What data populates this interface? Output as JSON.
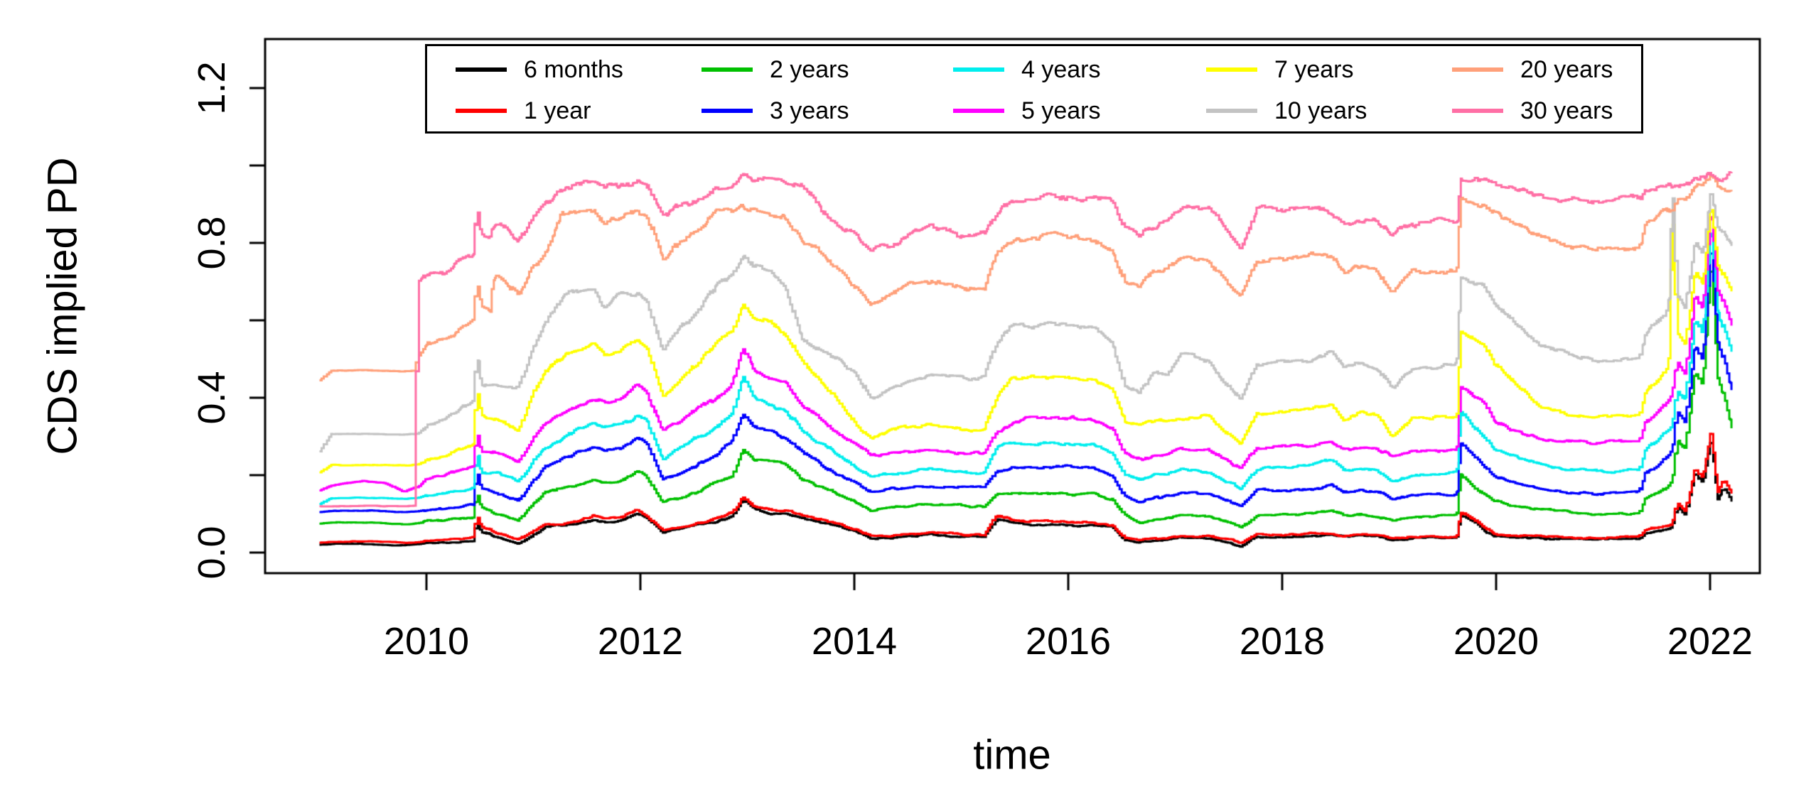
{
  "chart_data": {
    "type": "line",
    "title": "",
    "xlabel": "time",
    "ylabel": "CDS implied PD",
    "grid": false,
    "legend_position": "top-center",
    "xlim": [
      2008.49,
      2022.46
    ],
    "ylim": [
      0.0,
      1.2
    ],
    "x_axis": {
      "ticks": [
        2010,
        2012,
        2014,
        2016,
        2018,
        2020,
        2022
      ],
      "labels": [
        "2010",
        "2012",
        "2014",
        "2016",
        "2018",
        "2020",
        "2022"
      ]
    },
    "y_axis": {
      "ticks": [
        0.0,
        0.2,
        0.4,
        0.6,
        0.8,
        1.0,
        1.2
      ],
      "labeled": [
        {
          "value": 0.0,
          "label": "0.0"
        },
        {
          "value": 0.4,
          "label": "0.4"
        },
        {
          "value": 0.8,
          "label": "0.8"
        },
        {
          "value": 1.2,
          "label": "1.2"
        }
      ]
    },
    "t": [
      2009.0,
      2009.1,
      2009.4,
      2009.6,
      2009.78,
      2009.88,
      2009.91,
      2010.0,
      2010.15,
      2010.3,
      2010.43,
      2010.46,
      2010.5,
      2010.58,
      2010.61,
      2010.66,
      2010.85,
      2011.0,
      2011.1,
      2011.25,
      2011.4,
      2011.55,
      2011.65,
      2011.8,
      2011.96,
      2012.05,
      2012.2,
      2012.35,
      2012.5,
      2012.7,
      2012.85,
      2012.95,
      2013.05,
      2013.2,
      2013.35,
      2013.5,
      2013.65,
      2013.8,
      2014.0,
      2014.15,
      2014.35,
      2014.55,
      2014.7,
      2014.9,
      2015.05,
      2015.2,
      2015.32,
      2015.45,
      2015.6,
      2015.9,
      2016.2,
      2016.4,
      2016.52,
      2016.65,
      2016.78,
      2016.92,
      2017.05,
      2017.3,
      2017.45,
      2017.6,
      2017.75,
      2018.0,
      2018.25,
      2018.45,
      2018.57,
      2018.72,
      2018.88,
      2019.02,
      2019.2,
      2019.4,
      2019.62,
      2019.66,
      2019.78,
      2019.88,
      2019.97,
      2020.12,
      2020.28,
      2020.42,
      2020.6,
      2020.9,
      2021.15,
      2021.33,
      2021.38,
      2021.5,
      2021.6,
      2021.64,
      2021.68,
      2021.76,
      2021.85,
      2021.92,
      2022.0,
      2022.06,
      2022.12,
      2022.2
    ],
    "series": [
      {
        "name": "6 months",
        "color": "#000000",
        "v": [
          0.02,
          0.022,
          0.022,
          0.021,
          0.019,
          0.021,
          0.022,
          0.024,
          0.026,
          0.028,
          0.03,
          0.085,
          0.055,
          0.048,
          0.044,
          0.04,
          0.025,
          0.05,
          0.065,
          0.07,
          0.072,
          0.085,
          0.08,
          0.083,
          0.1,
          0.09,
          0.055,
          0.06,
          0.068,
          0.08,
          0.095,
          0.135,
          0.11,
          0.1,
          0.098,
          0.088,
          0.078,
          0.07,
          0.055,
          0.037,
          0.04,
          0.043,
          0.047,
          0.044,
          0.041,
          0.042,
          0.088,
          0.078,
          0.072,
          0.071,
          0.069,
          0.063,
          0.032,
          0.027,
          0.031,
          0.033,
          0.037,
          0.038,
          0.029,
          0.02,
          0.04,
          0.041,
          0.043,
          0.046,
          0.04,
          0.042,
          0.04,
          0.033,
          0.038,
          0.039,
          0.038,
          0.098,
          0.078,
          0.055,
          0.042,
          0.04,
          0.038,
          0.037,
          0.036,
          0.034,
          0.036,
          0.036,
          0.048,
          0.055,
          0.062,
          0.068,
          0.12,
          0.1,
          0.21,
          0.18,
          0.29,
          0.14,
          0.17,
          0.13
        ]
      },
      {
        "name": "1 year",
        "color": "#FF0000",
        "v": [
          0.025,
          0.027,
          0.028,
          0.027,
          0.025,
          0.027,
          0.028,
          0.03,
          0.033,
          0.036,
          0.038,
          0.095,
          0.065,
          0.056,
          0.05,
          0.046,
          0.03,
          0.058,
          0.075,
          0.077,
          0.08,
          0.094,
          0.088,
          0.092,
          0.112,
          0.098,
          0.061,
          0.068,
          0.075,
          0.09,
          0.106,
          0.147,
          0.12,
          0.11,
          0.108,
          0.096,
          0.085,
          0.075,
          0.06,
          0.042,
          0.044,
          0.047,
          0.052,
          0.049,
          0.046,
          0.047,
          0.098,
          0.086,
          0.08,
          0.079,
          0.077,
          0.071,
          0.036,
          0.03,
          0.035,
          0.037,
          0.042,
          0.042,
          0.033,
          0.024,
          0.045,
          0.046,
          0.048,
          0.051,
          0.045,
          0.047,
          0.044,
          0.037,
          0.042,
          0.043,
          0.042,
          0.106,
          0.086,
          0.062,
          0.046,
          0.044,
          0.042,
          0.041,
          0.04,
          0.038,
          0.04,
          0.04,
          0.055,
          0.065,
          0.072,
          0.078,
          0.13,
          0.11,
          0.22,
          0.19,
          0.31,
          0.155,
          0.19,
          0.155
        ]
      },
      {
        "name": "2 years",
        "color": "#00C000",
        "v": [
          0.075,
          0.078,
          0.078,
          0.076,
          0.073,
          0.076,
          0.077,
          0.08,
          0.083,
          0.086,
          0.09,
          0.155,
          0.115,
          0.108,
          0.104,
          0.1,
          0.085,
          0.13,
          0.155,
          0.168,
          0.175,
          0.186,
          0.18,
          0.183,
          0.21,
          0.195,
          0.128,
          0.14,
          0.155,
          0.185,
          0.2,
          0.268,
          0.24,
          0.238,
          0.228,
          0.19,
          0.172,
          0.155,
          0.13,
          0.108,
          0.115,
          0.121,
          0.125,
          0.122,
          0.119,
          0.12,
          0.15,
          0.152,
          0.152,
          0.151,
          0.149,
          0.14,
          0.096,
          0.075,
          0.085,
          0.09,
          0.094,
          0.092,
          0.08,
          0.064,
          0.095,
          0.097,
          0.1,
          0.108,
          0.095,
          0.1,
          0.095,
          0.083,
          0.09,
          0.093,
          0.094,
          0.202,
          0.168,
          0.149,
          0.135,
          0.125,
          0.115,
          0.11,
          0.103,
          0.097,
          0.1,
          0.1,
          0.135,
          0.15,
          0.17,
          0.185,
          0.29,
          0.27,
          0.47,
          0.43,
          0.73,
          0.45,
          0.4,
          0.32
        ]
      },
      {
        "name": "3 years",
        "color": "#0000FF",
        "v": [
          0.105,
          0.108,
          0.109,
          0.107,
          0.104,
          0.106,
          0.107,
          0.11,
          0.113,
          0.118,
          0.125,
          0.215,
          0.165,
          0.16,
          0.158,
          0.155,
          0.135,
          0.19,
          0.222,
          0.24,
          0.258,
          0.272,
          0.262,
          0.268,
          0.296,
          0.28,
          0.186,
          0.205,
          0.225,
          0.25,
          0.29,
          0.357,
          0.32,
          0.31,
          0.293,
          0.26,
          0.232,
          0.204,
          0.18,
          0.158,
          0.165,
          0.171,
          0.175,
          0.172,
          0.169,
          0.17,
          0.21,
          0.22,
          0.222,
          0.221,
          0.219,
          0.205,
          0.151,
          0.131,
          0.14,
          0.145,
          0.152,
          0.152,
          0.135,
          0.119,
          0.158,
          0.16,
          0.163,
          0.174,
          0.155,
          0.16,
          0.155,
          0.137,
          0.148,
          0.15,
          0.152,
          0.284,
          0.248,
          0.216,
          0.196,
          0.18,
          0.172,
          0.165,
          0.158,
          0.15,
          0.155,
          0.156,
          0.205,
          0.225,
          0.25,
          0.265,
          0.365,
          0.34,
          0.54,
          0.5,
          0.78,
          0.55,
          0.5,
          0.42
        ]
      },
      {
        "name": "4 years",
        "color": "#00EEEE",
        "v": [
          0.125,
          0.14,
          0.141,
          0.14,
          0.138,
          0.14,
          0.141,
          0.148,
          0.152,
          0.16,
          0.168,
          0.265,
          0.205,
          0.205,
          0.205,
          0.204,
          0.185,
          0.24,
          0.272,
          0.295,
          0.32,
          0.336,
          0.325,
          0.33,
          0.35,
          0.34,
          0.24,
          0.265,
          0.295,
          0.32,
          0.36,
          0.452,
          0.4,
          0.38,
          0.368,
          0.315,
          0.288,
          0.26,
          0.222,
          0.198,
          0.205,
          0.211,
          0.215,
          0.212,
          0.204,
          0.206,
          0.27,
          0.28,
          0.284,
          0.283,
          0.28,
          0.262,
          0.204,
          0.189,
          0.2,
          0.205,
          0.216,
          0.207,
          0.185,
          0.167,
          0.215,
          0.217,
          0.221,
          0.235,
          0.21,
          0.215,
          0.21,
          0.185,
          0.2,
          0.204,
          0.207,
          0.363,
          0.318,
          0.29,
          0.262,
          0.245,
          0.235,
          0.225,
          0.217,
          0.21,
          0.213,
          0.214,
          0.265,
          0.29,
          0.32,
          0.335,
          0.425,
          0.4,
          0.6,
          0.56,
          0.82,
          0.62,
          0.57,
          0.51
        ]
      },
      {
        "name": "5 years",
        "color": "#FF00FF",
        "v": [
          0.16,
          0.172,
          0.185,
          0.18,
          0.157,
          0.168,
          0.17,
          0.19,
          0.2,
          0.215,
          0.225,
          0.315,
          0.265,
          0.262,
          0.261,
          0.26,
          0.235,
          0.3,
          0.336,
          0.36,
          0.385,
          0.4,
          0.39,
          0.395,
          0.43,
          0.41,
          0.315,
          0.335,
          0.365,
          0.4,
          0.44,
          0.525,
          0.47,
          0.445,
          0.432,
          0.38,
          0.348,
          0.315,
          0.277,
          0.248,
          0.255,
          0.261,
          0.265,
          0.262,
          0.254,
          0.256,
          0.312,
          0.33,
          0.345,
          0.344,
          0.342,
          0.32,
          0.256,
          0.24,
          0.25,
          0.255,
          0.266,
          0.266,
          0.24,
          0.216,
          0.27,
          0.272,
          0.277,
          0.284,
          0.265,
          0.27,
          0.265,
          0.247,
          0.26,
          0.263,
          0.265,
          0.43,
          0.398,
          0.385,
          0.34,
          0.317,
          0.307,
          0.296,
          0.29,
          0.28,
          0.283,
          0.284,
          0.33,
          0.36,
          0.395,
          0.415,
          0.49,
          0.46,
          0.66,
          0.62,
          0.86,
          0.68,
          0.64,
          0.58
        ]
      },
      {
        "name": "7 years",
        "color": "#FFFF00",
        "v": [
          0.207,
          0.226,
          0.227,
          0.226,
          0.225,
          0.227,
          0.228,
          0.24,
          0.252,
          0.27,
          0.285,
          0.43,
          0.36,
          0.35,
          0.348,
          0.345,
          0.315,
          0.42,
          0.47,
          0.51,
          0.525,
          0.53,
          0.505,
          0.515,
          0.545,
          0.53,
          0.405,
          0.44,
          0.48,
          0.54,
          0.58,
          0.644,
          0.61,
          0.6,
          0.555,
          0.49,
          0.448,
          0.41,
          0.33,
          0.295,
          0.315,
          0.322,
          0.33,
          0.325,
          0.315,
          0.32,
          0.4,
          0.449,
          0.45,
          0.449,
          0.447,
          0.42,
          0.34,
          0.33,
          0.34,
          0.345,
          0.349,
          0.363,
          0.32,
          0.29,
          0.36,
          0.363,
          0.368,
          0.388,
          0.345,
          0.363,
          0.355,
          0.302,
          0.35,
          0.352,
          0.352,
          0.571,
          0.548,
          0.54,
          0.49,
          0.449,
          0.406,
          0.37,
          0.355,
          0.345,
          0.348,
          0.35,
          0.41,
          0.45,
          0.485,
          0.9,
          0.57,
          0.54,
          0.73,
          0.7,
          0.9,
          0.75,
          0.72,
          0.68
        ]
      },
      {
        "name": "10 years",
        "color": "#C3C3C3",
        "v": [
          0.262,
          0.306,
          0.307,
          0.306,
          0.305,
          0.307,
          0.308,
          0.33,
          0.342,
          0.372,
          0.395,
          0.52,
          0.44,
          0.432,
          0.431,
          0.43,
          0.427,
          0.54,
          0.596,
          0.655,
          0.672,
          0.68,
          0.64,
          0.668,
          0.672,
          0.655,
          0.523,
          0.57,
          0.62,
          0.69,
          0.72,
          0.767,
          0.74,
          0.73,
          0.685,
          0.56,
          0.528,
          0.504,
          0.47,
          0.398,
          0.424,
          0.445,
          0.455,
          0.45,
          0.443,
          0.45,
          0.54,
          0.583,
          0.585,
          0.584,
          0.581,
          0.545,
          0.43,
          0.415,
          0.46,
          0.462,
          0.504,
          0.492,
          0.44,
          0.4,
          0.488,
          0.49,
          0.497,
          0.516,
          0.478,
          0.49,
          0.48,
          0.424,
          0.475,
          0.483,
          0.49,
          0.706,
          0.694,
          0.688,
          0.645,
          0.602,
          0.565,
          0.535,
          0.522,
          0.5,
          0.503,
          0.505,
          0.56,
          0.6,
          0.635,
          0.96,
          0.66,
          0.63,
          0.8,
          0.77,
          0.93,
          0.85,
          0.83,
          0.8
        ]
      },
      {
        "name": "20 years",
        "color": "#FFA07A",
        "v": [
          0.445,
          0.47,
          0.471,
          0.47,
          0.469,
          0.47,
          0.505,
          0.54,
          0.556,
          0.576,
          0.6,
          0.7,
          0.64,
          0.63,
          0.71,
          0.717,
          0.67,
          0.74,
          0.78,
          0.87,
          0.884,
          0.885,
          0.84,
          0.87,
          0.885,
          0.87,
          0.755,
          0.8,
          0.83,
          0.877,
          0.88,
          0.896,
          0.89,
          0.88,
          0.858,
          0.81,
          0.778,
          0.743,
          0.688,
          0.64,
          0.668,
          0.69,
          0.697,
          0.693,
          0.678,
          0.69,
          0.772,
          0.8,
          0.817,
          0.816,
          0.813,
          0.78,
          0.7,
          0.69,
          0.73,
          0.732,
          0.76,
          0.755,
          0.7,
          0.663,
          0.755,
          0.757,
          0.77,
          0.755,
          0.718,
          0.734,
          0.72,
          0.669,
          0.72,
          0.727,
          0.73,
          0.914,
          0.904,
          0.898,
          0.877,
          0.866,
          0.834,
          0.81,
          0.797,
          0.785,
          0.788,
          0.79,
          0.845,
          0.865,
          0.885,
          0.89,
          0.92,
          0.92,
          0.955,
          0.95,
          0.975,
          0.95,
          0.945,
          0.94
        ]
      },
      {
        "name": "30 years",
        "color": "#FF6FA5",
        "v": [
          0.12,
          0.12,
          0.121,
          0.12,
          0.12,
          0.121,
          0.7,
          0.72,
          0.713,
          0.75,
          0.77,
          0.9,
          0.82,
          0.815,
          0.84,
          0.846,
          0.804,
          0.88,
          0.914,
          0.945,
          0.953,
          0.955,
          0.935,
          0.95,
          0.955,
          0.945,
          0.872,
          0.895,
          0.908,
          0.95,
          0.955,
          0.981,
          0.97,
          0.963,
          0.958,
          0.945,
          0.898,
          0.853,
          0.818,
          0.779,
          0.79,
          0.82,
          0.834,
          0.83,
          0.808,
          0.83,
          0.882,
          0.914,
          0.923,
          0.922,
          0.92,
          0.9,
          0.836,
          0.828,
          0.853,
          0.856,
          0.889,
          0.883,
          0.838,
          0.792,
          0.883,
          0.885,
          0.891,
          0.878,
          0.846,
          0.86,
          0.85,
          0.819,
          0.85,
          0.856,
          0.857,
          0.972,
          0.967,
          0.963,
          0.95,
          0.947,
          0.932,
          0.92,
          0.914,
          0.905,
          0.908,
          0.91,
          0.935,
          0.942,
          0.95,
          0.952,
          0.958,
          0.955,
          0.975,
          0.972,
          0.985,
          0.975,
          0.972,
          0.98
        ]
      }
    ]
  }
}
